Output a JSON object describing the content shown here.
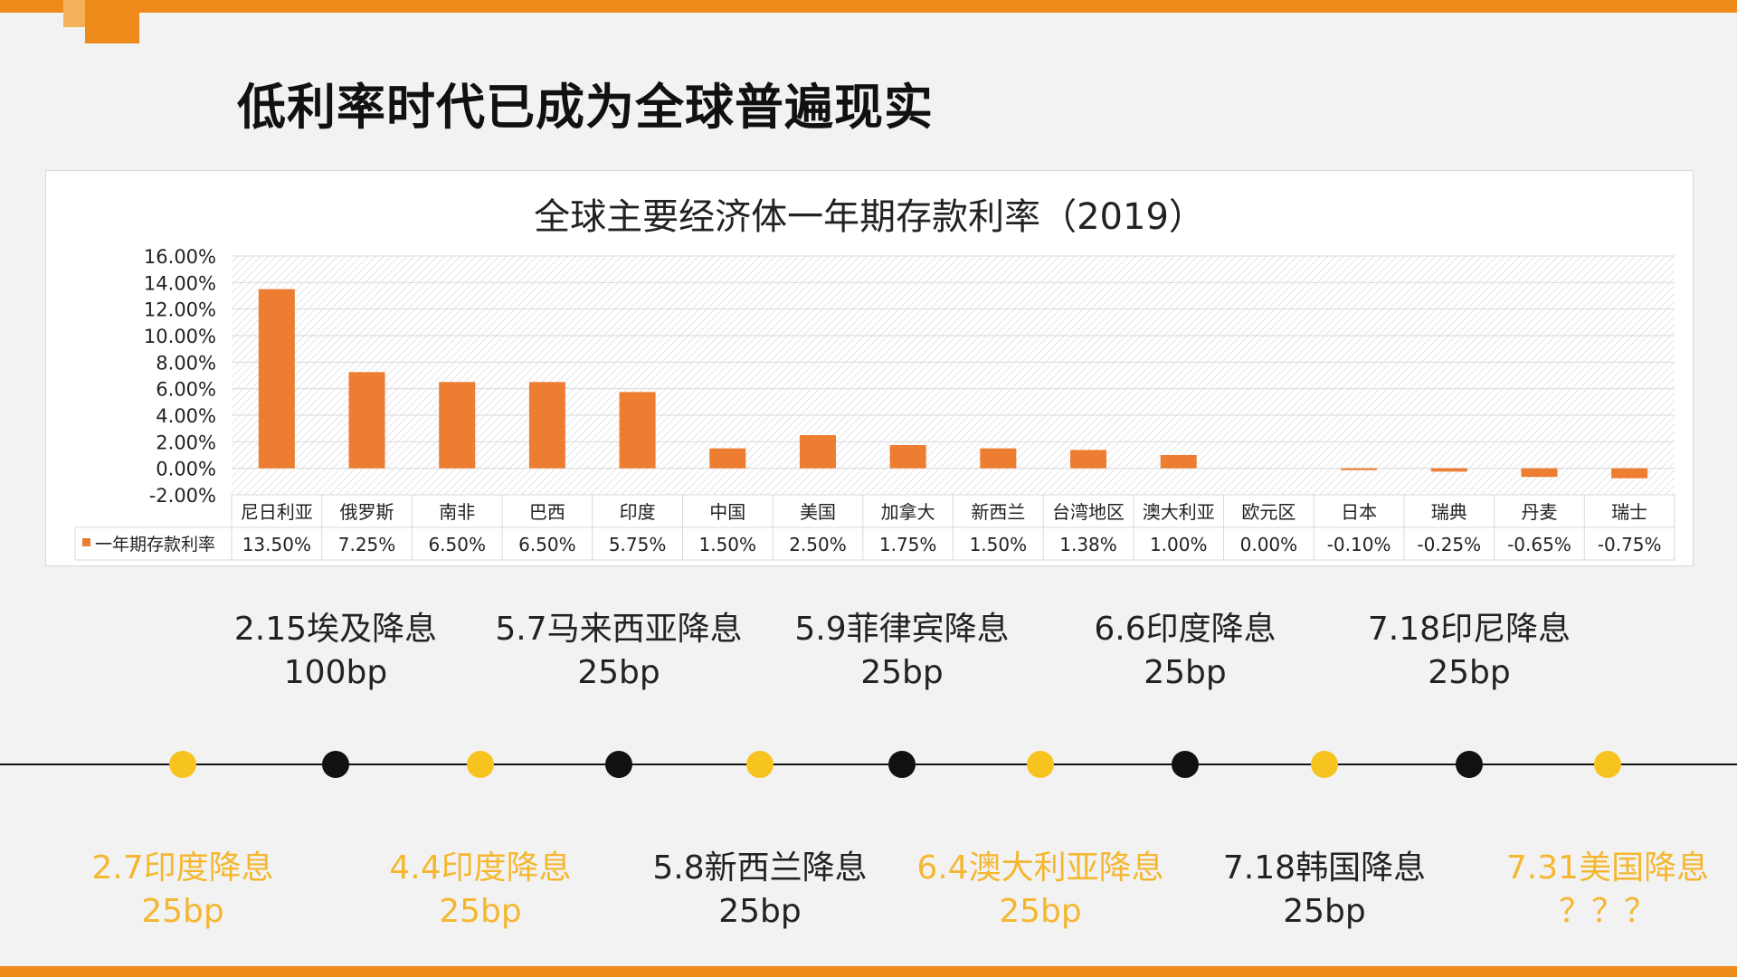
{
  "page_title": "低利率时代已成为全球普遍现实",
  "colors": {
    "accent": "#ee8a1a",
    "bar": "#ed7d31",
    "dot_yellow": "#f7c31f",
    "dot_black": "#111111",
    "text_yellow": "#f5b730"
  },
  "chart_data": {
    "type": "bar",
    "title": "全球主要经济体一年期存款利率（2019）",
    "categories": [
      "尼日利亚",
      "俄罗斯",
      "南非",
      "巴西",
      "印度",
      "中国",
      "美国",
      "加拿大",
      "新西兰",
      "台湾地区",
      "澳大利亚",
      "欧元区",
      "日本",
      "瑞典",
      "丹麦",
      "瑞士"
    ],
    "series": [
      {
        "name": "一年期存款利率",
        "values": [
          13.5,
          7.25,
          6.5,
          6.5,
          5.75,
          1.5,
          2.5,
          1.75,
          1.5,
          1.38,
          1.0,
          0.0,
          -0.1,
          -0.25,
          -0.65,
          -0.75
        ],
        "labels": [
          "13.50%",
          "7.25%",
          "6.50%",
          "6.50%",
          "5.75%",
          "1.50%",
          "2.50%",
          "1.75%",
          "1.50%",
          "1.38%",
          "1.00%",
          "0.00%",
          "-0.10%",
          "-0.25%",
          "-0.65%",
          "-0.75%"
        ]
      }
    ],
    "ylim": [
      -2,
      16
    ],
    "yticks": [
      "16.00%",
      "14.00%",
      "12.00%",
      "10.00%",
      "8.00%",
      "6.00%",
      "4.00%",
      "2.00%",
      "0.00%",
      "-2.00%"
    ],
    "grid": true,
    "legend": "data-table"
  },
  "timeline": {
    "top_events": [
      {
        "line1": "2.15埃及降息",
        "line2": "100bp"
      },
      {
        "line1": "5.7马来西亚降息",
        "line2": "25bp"
      },
      {
        "line1": "5.9菲律宾降息",
        "line2": "25bp"
      },
      {
        "line1": "6.6印度降息",
        "line2": "25bp"
      },
      {
        "line1": "7.18印尼降息",
        "line2": "25bp"
      }
    ],
    "bottom_events": [
      {
        "line1": "2.7印度降息",
        "line2": "25bp",
        "color": "yellow"
      },
      {
        "line1": "4.4印度降息",
        "line2": "25bp",
        "color": "yellow"
      },
      {
        "line1": "5.8新西兰降息",
        "line2": "25bp",
        "color": "dark"
      },
      {
        "line1": "6.4澳大利亚降息",
        "line2": "25bp",
        "color": "yellow"
      },
      {
        "line1": "7.18韩国降息",
        "line2": "25bp",
        "color": "dark"
      },
      {
        "line1": "7.31美国降息",
        "line2": "？？？",
        "color": "yellow"
      }
    ]
  }
}
